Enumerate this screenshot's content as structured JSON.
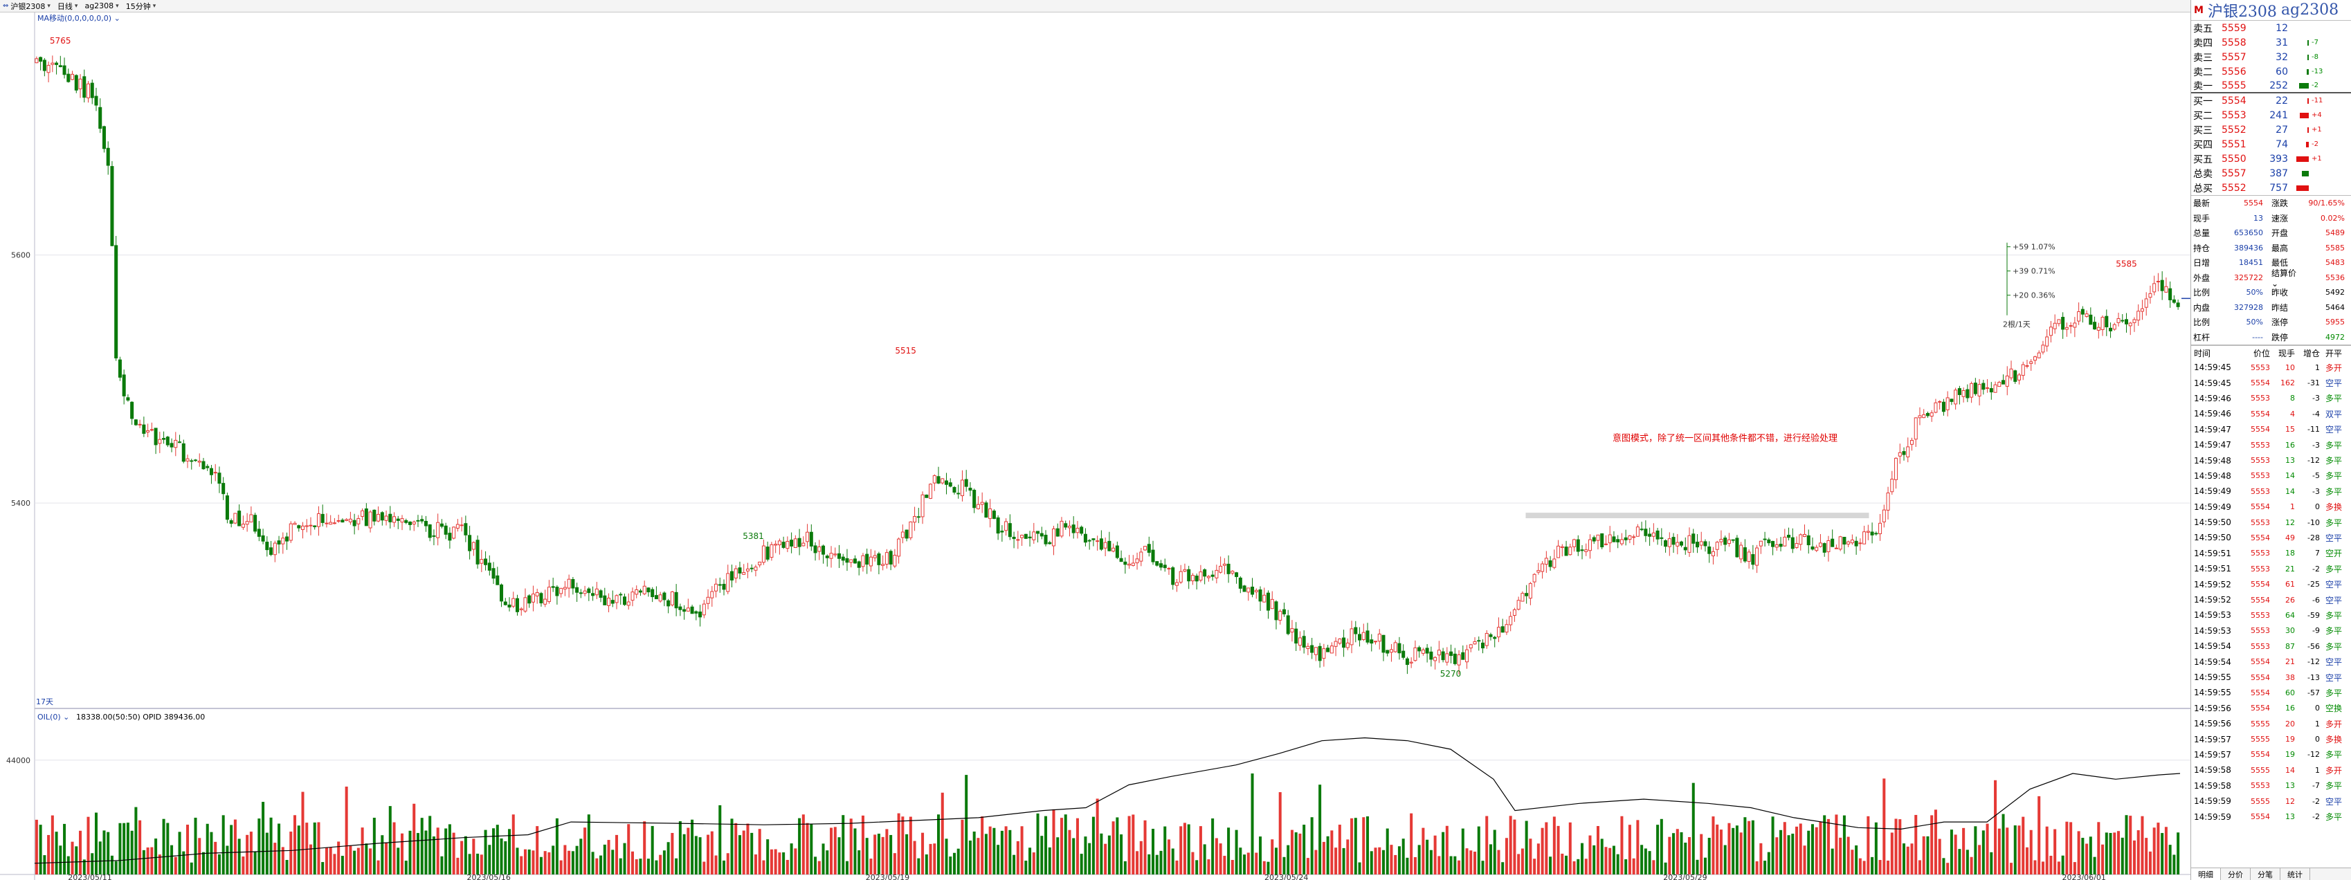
{
  "toolbar": {
    "items": [
      "沪银2308",
      "日线",
      "ag2308",
      "15分钟"
    ]
  },
  "colors": {
    "up": "#e53935",
    "down": "#0b7a0b",
    "line": "#000000",
    "band": "#cfcfcf",
    "accent_blue": "#1a3fa8",
    "annotation": "#e00000"
  },
  "chart_data": {
    "type": "candlestick",
    "main": {
      "indicator_label": "MA移动(0,0,0,0,0,0)",
      "ylim": [
        5240,
        5790
      ],
      "y_ticks": [
        5400,
        5600
      ],
      "x_dates": [
        "2023/05/11",
        "2023/05/16",
        "2023/05/19",
        "2023/05/24",
        "2023/05/29",
        "2023/06/01"
      ],
      "period_label": "17天",
      "price_path": [
        [
          0.0,
          5755
        ],
        [
          0.01,
          5750
        ],
        [
          0.025,
          5730
        ],
        [
          0.032,
          5690
        ],
        [
          0.035,
          5640
        ],
        [
          0.036,
          5520
        ],
        [
          0.045,
          5470
        ],
        [
          0.055,
          5450
        ],
        [
          0.065,
          5445
        ],
        [
          0.075,
          5430
        ],
        [
          0.085,
          5425
        ],
        [
          0.09,
          5385
        ],
        [
          0.1,
          5385
        ],
        [
          0.11,
          5360
        ],
        [
          0.12,
          5380
        ],
        [
          0.14,
          5390
        ],
        [
          0.16,
          5385
        ],
        [
          0.18,
          5380
        ],
        [
          0.2,
          5375
        ],
        [
          0.21,
          5345
        ],
        [
          0.22,
          5315
        ],
        [
          0.235,
          5325
        ],
        [
          0.25,
          5335
        ],
        [
          0.27,
          5320
        ],
        [
          0.285,
          5330
        ],
        [
          0.3,
          5320
        ],
        [
          0.31,
          5310
        ],
        [
          0.32,
          5335
        ],
        [
          0.34,
          5360
        ],
        [
          0.36,
          5370
        ],
        [
          0.38,
          5350
        ],
        [
          0.4,
          5355
        ],
        [
          0.41,
          5390
        ],
        [
          0.42,
          5420
        ],
        [
          0.43,
          5415
        ],
        [
          0.44,
          5400
        ],
        [
          0.45,
          5380
        ],
        [
          0.46,
          5375
        ],
        [
          0.47,
          5370
        ],
        [
          0.48,
          5380
        ],
        [
          0.49,
          5375
        ],
        [
          0.5,
          5365
        ],
        [
          0.51,
          5355
        ],
        [
          0.52,
          5360
        ],
        [
          0.53,
          5340
        ],
        [
          0.545,
          5345
        ],
        [
          0.555,
          5350
        ],
        [
          0.565,
          5330
        ],
        [
          0.575,
          5320
        ],
        [
          0.585,
          5300
        ],
        [
          0.595,
          5280
        ],
        [
          0.6,
          5275
        ],
        [
          0.61,
          5290
        ],
        [
          0.62,
          5295
        ],
        [
          0.63,
          5285
        ],
        [
          0.64,
          5275
        ],
        [
          0.65,
          5280
        ],
        [
          0.66,
          5272
        ],
        [
          0.67,
          5285
        ],
        [
          0.68,
          5290
        ],
        [
          0.69,
          5315
        ],
        [
          0.7,
          5345
        ],
        [
          0.71,
          5360
        ],
        [
          0.72,
          5365
        ],
        [
          0.73,
          5370
        ],
        [
          0.74,
          5372
        ],
        [
          0.75,
          5375
        ],
        [
          0.76,
          5372
        ],
        [
          0.77,
          5368
        ],
        [
          0.78,
          5365
        ],
        [
          0.79,
          5368
        ],
        [
          0.8,
          5355
        ],
        [
          0.81,
          5370
        ],
        [
          0.82,
          5370
        ],
        [
          0.83,
          5366
        ],
        [
          0.84,
          5368
        ],
        [
          0.85,
          5372
        ],
        [
          0.86,
          5380
        ],
        [
          0.87,
          5440
        ],
        [
          0.88,
          5470
        ],
        [
          0.89,
          5480
        ],
        [
          0.9,
          5488
        ],
        [
          0.91,
          5492
        ],
        [
          0.92,
          5500
        ],
        [
          0.93,
          5510
        ],
        [
          0.94,
          5540
        ],
        [
          0.95,
          5550
        ],
        [
          0.96,
          5548
        ],
        [
          0.97,
          5540
        ],
        [
          0.98,
          5555
        ],
        [
          0.99,
          5578
        ],
        [
          1.0,
          5565
        ]
      ],
      "annotations": [
        {
          "text": "5765",
          "x_frac": 0.012,
          "price": 5765,
          "color": "red",
          "pos": "above"
        },
        {
          "text": "5381",
          "x_frac": 0.335,
          "price": 5381,
          "color": "green",
          "pos": "below"
        },
        {
          "text": "5515",
          "x_frac": 0.406,
          "price": 5515,
          "color": "red",
          "pos": "above"
        },
        {
          "text": "5270",
          "x_frac": 0.66,
          "price": 5270,
          "color": "green",
          "pos": "below"
        },
        {
          "text": "5585",
          "x_frac": 0.975,
          "price": 5585,
          "color": "red",
          "pos": "above"
        }
      ],
      "note": "意图模式，除了统一区间其他条件都不错，进行经验处理",
      "band_price": 5390,
      "band_x_range": [
        0.695,
        0.855
      ],
      "mini_scale": {
        "labels": [
          "+59  1.07%",
          "+39  0.71%",
          "+20  0.36%"
        ],
        "footer": "2根/1天"
      }
    },
    "sub": {
      "label_main": "OIL(0)",
      "label_values": "18338.00(50:50)  OPID 389436.00",
      "y_ticks": [
        44000
      ],
      "oi_path": [
        [
          0.0,
          0.97
        ],
        [
          0.04,
          0.95
        ],
        [
          0.08,
          0.9
        ],
        [
          0.12,
          0.88
        ],
        [
          0.16,
          0.83
        ],
        [
          0.2,
          0.79
        ],
        [
          0.23,
          0.77
        ],
        [
          0.25,
          0.68
        ],
        [
          0.3,
          0.69
        ],
        [
          0.34,
          0.7
        ],
        [
          0.38,
          0.69
        ],
        [
          0.41,
          0.67
        ],
        [
          0.44,
          0.65
        ],
        [
          0.47,
          0.6
        ],
        [
          0.49,
          0.58
        ],
        [
          0.51,
          0.42
        ],
        [
          0.53,
          0.36
        ],
        [
          0.56,
          0.28
        ],
        [
          0.58,
          0.2
        ],
        [
          0.6,
          0.11
        ],
        [
          0.62,
          0.09
        ],
        [
          0.64,
          0.11
        ],
        [
          0.66,
          0.17
        ],
        [
          0.68,
          0.38
        ],
        [
          0.69,
          0.6
        ],
        [
          0.72,
          0.55
        ],
        [
          0.75,
          0.52
        ],
        [
          0.78,
          0.55
        ],
        [
          0.8,
          0.58
        ],
        [
          0.82,
          0.65
        ],
        [
          0.85,
          0.72
        ],
        [
          0.87,
          0.73
        ],
        [
          0.89,
          0.68
        ],
        [
          0.91,
          0.68
        ],
        [
          0.93,
          0.45
        ],
        [
          0.95,
          0.34
        ],
        [
          0.97,
          0.38
        ],
        [
          0.99,
          0.35
        ],
        [
          1.0,
          0.34
        ]
      ]
    }
  },
  "sidebar": {
    "title_mark": "M",
    "title_name": "沪银2308",
    "title_code": "ag2308",
    "orderbook": [
      {
        "label": "卖五",
        "price": "5559",
        "vol": "12",
        "bar": 0,
        "chg": "",
        "chg_color": "green"
      },
      {
        "label": "卖四",
        "price": "5558",
        "vol": "31",
        "bar": 2,
        "chg": "-7",
        "chg_color": "green"
      },
      {
        "label": "卖三",
        "price": "5557",
        "vol": "32",
        "bar": 2,
        "chg": "-8",
        "chg_color": "green"
      },
      {
        "label": "卖二",
        "price": "5556",
        "vol": "60",
        "bar": 3,
        "chg": "-13",
        "chg_color": "green"
      },
      {
        "label": "卖一",
        "price": "5555",
        "vol": "252",
        "bar": 14,
        "chg": "-2",
        "chg_color": "green"
      },
      {
        "label": "买一",
        "price": "5554",
        "vol": "22",
        "bar": 2,
        "chg": "-11",
        "chg_color": "red"
      },
      {
        "label": "买二",
        "price": "5553",
        "vol": "241",
        "bar": 13,
        "chg": "+4",
        "chg_color": "red"
      },
      {
        "label": "买三",
        "price": "5552",
        "vol": "27",
        "bar": 2,
        "chg": "+1",
        "chg_color": "red"
      },
      {
        "label": "买四",
        "price": "5551",
        "vol": "74",
        "bar": 4,
        "chg": "-2",
        "chg_color": "red"
      },
      {
        "label": "买五",
        "price": "5550",
        "vol": "393",
        "bar": 18,
        "chg": "+1",
        "chg_color": "red"
      }
    ],
    "totals": [
      {
        "label": "总卖",
        "price": "5557",
        "vol": "387",
        "bar": 10,
        "bar_color": "green"
      },
      {
        "label": "总买",
        "price": "5552",
        "vol": "757",
        "bar": 18,
        "bar_color": "red"
      }
    ],
    "stats": [
      {
        "k1": "最新",
        "v1": "5554",
        "c1": "red",
        "k2": "涨跌",
        "v2": "90/1.65%",
        "c2": "red"
      },
      {
        "k1": "现手",
        "v1": "13",
        "c1": "blue",
        "k2": "速涨",
        "v2": "0.02%",
        "c2": "red"
      },
      {
        "k1": "总量",
        "v1": "653650",
        "c1": "blue",
        "k2": "开盘",
        "v2": "5489",
        "c2": "red"
      },
      {
        "k1": "持仓",
        "v1": "389436",
        "c1": "blue",
        "k2": "最高",
        "v2": "5585",
        "c2": "red"
      },
      {
        "k1": "日增",
        "v1": "18451",
        "c1": "blue",
        "k2": "最低",
        "v2": "5483",
        "c2": "red"
      },
      {
        "k1": "外盘",
        "v1": "325722",
        "c1": "red",
        "k2": "结算价 ⌄",
        "v2": "5536",
        "c2": "red"
      },
      {
        "k1": "比例",
        "v1": "50%",
        "c1": "blue",
        "k2": "昨收",
        "v2": "5492",
        "c2": "black"
      },
      {
        "k1": "内盘",
        "v1": "327928",
        "c1": "blue",
        "k2": "昨结",
        "v2": "5464",
        "c2": "black"
      },
      {
        "k1": "比例",
        "v1": "50%",
        "c1": "blue",
        "k2": "涨停",
        "v2": "5955",
        "c2": "red"
      },
      {
        "k1": "杠杆",
        "v1": "----",
        "c1": "blue",
        "k2": "跌停",
        "v2": "4972",
        "c2": "green"
      }
    ],
    "ticks_header": {
      "time": "时间",
      "price": "价位",
      "vol": "现手",
      "delta": "增仓",
      "type": "开平"
    },
    "ticks": [
      {
        "time": "14:59:45",
        "price": "5553",
        "vol": "10",
        "vc": "red",
        "delta": "1",
        "type": "多开",
        "tc": "red"
      },
      {
        "time": "14:59:45",
        "price": "5554",
        "vol": "162",
        "vc": "red",
        "delta": "-31",
        "type": "空平",
        "tc": "blue"
      },
      {
        "time": "14:59:46",
        "price": "5553",
        "vol": "8",
        "vc": "green",
        "delta": "-3",
        "type": "多平",
        "tc": "green"
      },
      {
        "time": "14:59:46",
        "price": "5554",
        "vol": "4",
        "vc": "red",
        "delta": "-4",
        "type": "双平",
        "tc": "blue"
      },
      {
        "time": "14:59:47",
        "price": "5554",
        "vol": "15",
        "vc": "red",
        "delta": "-11",
        "type": "空平",
        "tc": "blue"
      },
      {
        "time": "14:59:47",
        "price": "5553",
        "vol": "16",
        "vc": "green",
        "delta": "-3",
        "type": "多平",
        "tc": "green"
      },
      {
        "time": "14:59:48",
        "price": "5553",
        "vol": "13",
        "vc": "green",
        "delta": "-12",
        "type": "多平",
        "tc": "green"
      },
      {
        "time": "14:59:48",
        "price": "5553",
        "vol": "14",
        "vc": "green",
        "delta": "-5",
        "type": "多平",
        "tc": "green"
      },
      {
        "time": "14:59:49",
        "price": "5553",
        "vol": "14",
        "vc": "green",
        "delta": "-3",
        "type": "多平",
        "tc": "green"
      },
      {
        "time": "14:59:49",
        "price": "5554",
        "vol": "1",
        "vc": "red",
        "delta": "0",
        "type": "多换",
        "tc": "red"
      },
      {
        "time": "14:59:50",
        "price": "5553",
        "vol": "12",
        "vc": "green",
        "delta": "-10",
        "type": "多平",
        "tc": "green"
      },
      {
        "time": "14:59:50",
        "price": "5554",
        "vol": "49",
        "vc": "red",
        "delta": "-28",
        "type": "空平",
        "tc": "blue"
      },
      {
        "time": "14:59:51",
        "price": "5553",
        "vol": "18",
        "vc": "green",
        "delta": "7",
        "type": "空开",
        "tc": "green"
      },
      {
        "time": "14:59:51",
        "price": "5553",
        "vol": "21",
        "vc": "green",
        "delta": "-2",
        "type": "多平",
        "tc": "green"
      },
      {
        "time": "14:59:52",
        "price": "5554",
        "vol": "61",
        "vc": "red",
        "delta": "-25",
        "type": "空平",
        "tc": "blue"
      },
      {
        "time": "14:59:52",
        "price": "5554",
        "vol": "26",
        "vc": "red",
        "delta": "-6",
        "type": "空平",
        "tc": "blue"
      },
      {
        "time": "14:59:53",
        "price": "5553",
        "vol": "64",
        "vc": "green",
        "delta": "-59",
        "type": "多平",
        "tc": "green"
      },
      {
        "time": "14:59:53",
        "price": "5553",
        "vol": "30",
        "vc": "green",
        "delta": "-9",
        "type": "多平",
        "tc": "green"
      },
      {
        "time": "14:59:54",
        "price": "5553",
        "vol": "87",
        "vc": "green",
        "delta": "-56",
        "type": "多平",
        "tc": "green"
      },
      {
        "time": "14:59:54",
        "price": "5554",
        "vol": "21",
        "vc": "red",
        "delta": "-12",
        "type": "空平",
        "tc": "blue"
      },
      {
        "time": "14:59:55",
        "price": "5554",
        "vol": "38",
        "vc": "red",
        "delta": "-13",
        "type": "空平",
        "tc": "blue"
      },
      {
        "time": "14:59:55",
        "price": "5554",
        "vol": "60",
        "vc": "green",
        "delta": "-57",
        "type": "多平",
        "tc": "green"
      },
      {
        "time": "14:59:56",
        "price": "5554",
        "vol": "16",
        "vc": "green",
        "delta": "0",
        "type": "空换",
        "tc": "green"
      },
      {
        "time": "14:59:56",
        "price": "5555",
        "vol": "20",
        "vc": "red",
        "delta": "1",
        "type": "多开",
        "tc": "red"
      },
      {
        "time": "14:59:57",
        "price": "5555",
        "vol": "19",
        "vc": "red",
        "delta": "0",
        "type": "多换",
        "tc": "red"
      },
      {
        "time": "14:59:57",
        "price": "5554",
        "vol": "19",
        "vc": "green",
        "delta": "-12",
        "type": "多平",
        "tc": "green"
      },
      {
        "time": "14:59:58",
        "price": "5555",
        "vol": "14",
        "vc": "red",
        "delta": "1",
        "type": "多开",
        "tc": "red"
      },
      {
        "time": "14:59:58",
        "price": "5553",
        "vol": "13",
        "vc": "green",
        "delta": "-7",
        "type": "多平",
        "tc": "green"
      },
      {
        "time": "14:59:59",
        "price": "5555",
        "vol": "12",
        "vc": "red",
        "delta": "-2",
        "type": "空平",
        "tc": "blue"
      },
      {
        "time": "14:59:59",
        "price": "5554",
        "vol": "13",
        "vc": "green",
        "delta": "-2",
        "type": "多平",
        "tc": "green"
      }
    ],
    "tabs": [
      "明细",
      "分价",
      "分笔",
      "统计"
    ]
  }
}
